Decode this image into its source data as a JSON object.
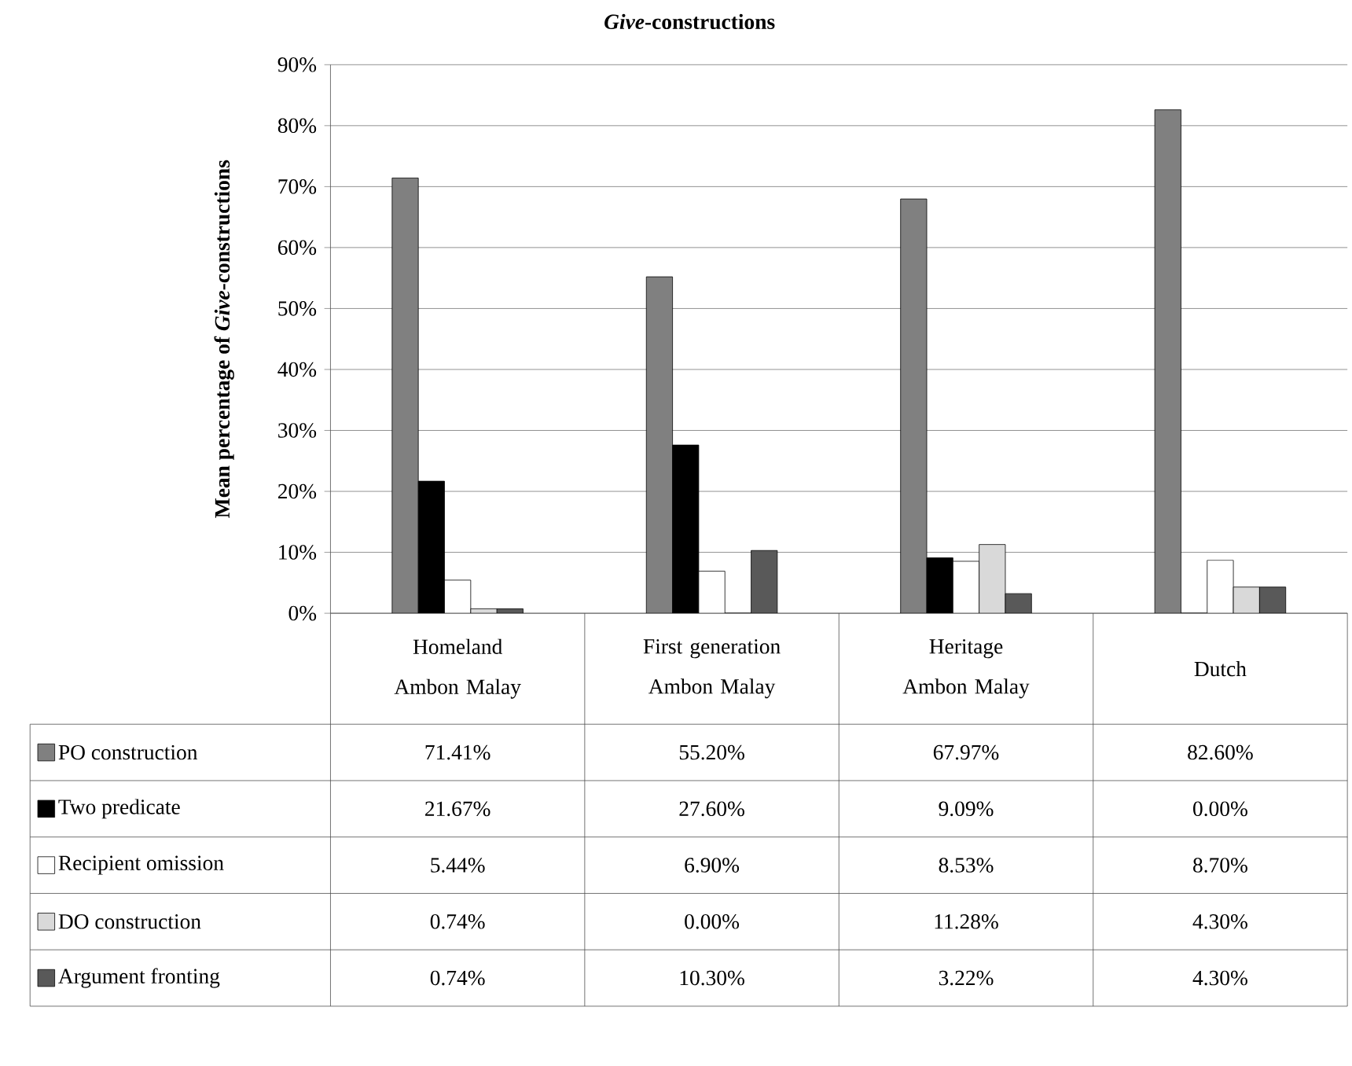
{
  "chart_data": {
    "type": "bar",
    "title": "*Give*-constructions",
    "ylabel": "Mean percentage of *Give*-constructions",
    "categories": [
      "Homeland Ambon Malay",
      "First generation Ambon Malay",
      "Heritage Ambon Malay",
      "Dutch"
    ],
    "series": [
      {
        "name": "PO construction",
        "color": "#808080",
        "values": [
          71.41,
          55.2,
          67.97,
          82.6
        ],
        "value_labels": [
          "71.41%",
          "55.20%",
          "67.97%",
          "82.60%"
        ]
      },
      {
        "name": "Two predicate",
        "color": "#000000",
        "values": [
          21.67,
          27.6,
          9.09,
          0.0
        ],
        "value_labels": [
          "21.67%",
          "27.60%",
          "9.09%",
          "0.00%"
        ]
      },
      {
        "name": "Recipient omission",
        "color": "#ffffff",
        "values": [
          5.44,
          6.9,
          8.53,
          8.7
        ],
        "value_labels": [
          "5.44%",
          "6.90%",
          "8.53%",
          "8.70%"
        ]
      },
      {
        "name": "DO construction",
        "color": "#d9d9d9",
        "values": [
          0.74,
          0.0,
          11.28,
          4.3
        ],
        "value_labels": [
          "0.74%",
          "0.00%",
          "11.28%",
          "4.30%"
        ]
      },
      {
        "name": "Argument fronting",
        "color": "#595959",
        "values": [
          0.74,
          10.3,
          3.22,
          4.3
        ],
        "value_labels": [
          "0.74%",
          "10.30%",
          "3.22%",
          "4.30%"
        ]
      }
    ],
    "ylim": [
      0,
      90
    ],
    "yticks": [
      {
        "value": 0,
        "label": "0%"
      },
      {
        "value": 10,
        "label": "10%"
      },
      {
        "value": 20,
        "label": "20%"
      },
      {
        "value": 30,
        "label": "30%"
      },
      {
        "value": 40,
        "label": "40%"
      },
      {
        "value": 50,
        "label": "50%"
      },
      {
        "value": 60,
        "label": "60%"
      },
      {
        "value": 70,
        "label": "70%"
      },
      {
        "value": 80,
        "label": "80%"
      },
      {
        "value": 90,
        "label": "90%"
      }
    ],
    "grid": "y",
    "legend": "bottom left"
  }
}
